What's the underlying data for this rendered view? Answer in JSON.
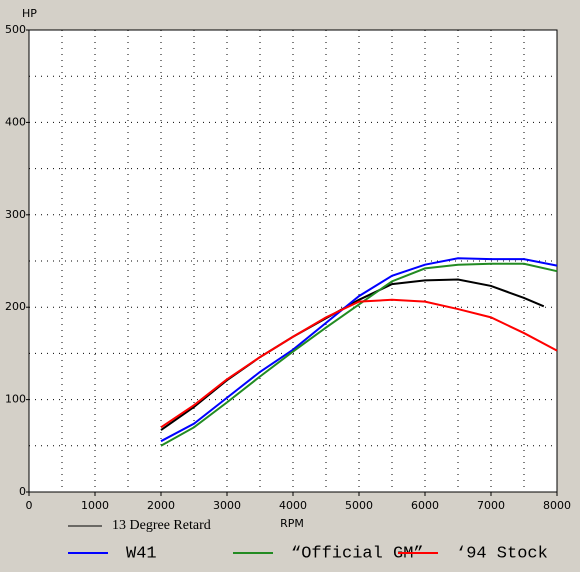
{
  "chart_data": {
    "type": "line",
    "xlabel": "RPM",
    "ylabel": "HP",
    "xlim": [
      0,
      8000
    ],
    "ylim": [
      0,
      500
    ],
    "xticks": [
      0,
      1000,
      2000,
      3000,
      4000,
      5000,
      6000,
      7000,
      8000
    ],
    "yticks": [
      0,
      100,
      200,
      300,
      400,
      500
    ],
    "xgrid": [
      500,
      1000,
      1500,
      2000,
      2500,
      3000,
      3500,
      4000,
      4500,
      5000,
      5500,
      6000,
      6500,
      7000,
      7500
    ],
    "ygrid": [
      50,
      100,
      150,
      200,
      250,
      300,
      350,
      400,
      450
    ],
    "series": [
      {
        "name": "13 Degree Retard",
        "color": "#000000",
        "x": [
          2000,
          2500,
          3000,
          3500,
          4000,
          4500,
          5000,
          5500,
          6000,
          6500,
          7000,
          7500,
          7800
        ],
        "values": [
          67,
          92,
          121,
          146,
          168,
          188,
          208,
          225,
          229,
          230,
          223,
          210,
          201
        ]
      },
      {
        "name": "W41",
        "color": "#0000ff",
        "x": [
          2000,
          2500,
          3000,
          3500,
          4000,
          4500,
          5000,
          5500,
          6000,
          6500,
          7000,
          7500,
          8000
        ],
        "values": [
          55,
          74,
          102,
          130,
          154,
          183,
          212,
          234,
          246,
          253,
          252,
          252,
          245
        ]
      },
      {
        "name": "“Official GM”",
        "color": "#228b22",
        "x": [
          2000,
          2500,
          3000,
          3500,
          4000,
          4500,
          5000,
          5500,
          6000,
          6500,
          7000,
          7500,
          8000
        ],
        "values": [
          50,
          70,
          97,
          125,
          152,
          178,
          203,
          228,
          242,
          246,
          247,
          247,
          239
        ]
      },
      {
        "name": "‘94 Stock",
        "color": "#ff0000",
        "x": [
          2000,
          2500,
          3000,
          3500,
          4000,
          4500,
          5000,
          5500,
          6000,
          6500,
          7000,
          7500,
          8000
        ],
        "values": [
          70,
          94,
          122,
          146,
          168,
          189,
          206,
          208,
          206,
          198,
          189,
          172,
          153
        ]
      }
    ]
  }
}
